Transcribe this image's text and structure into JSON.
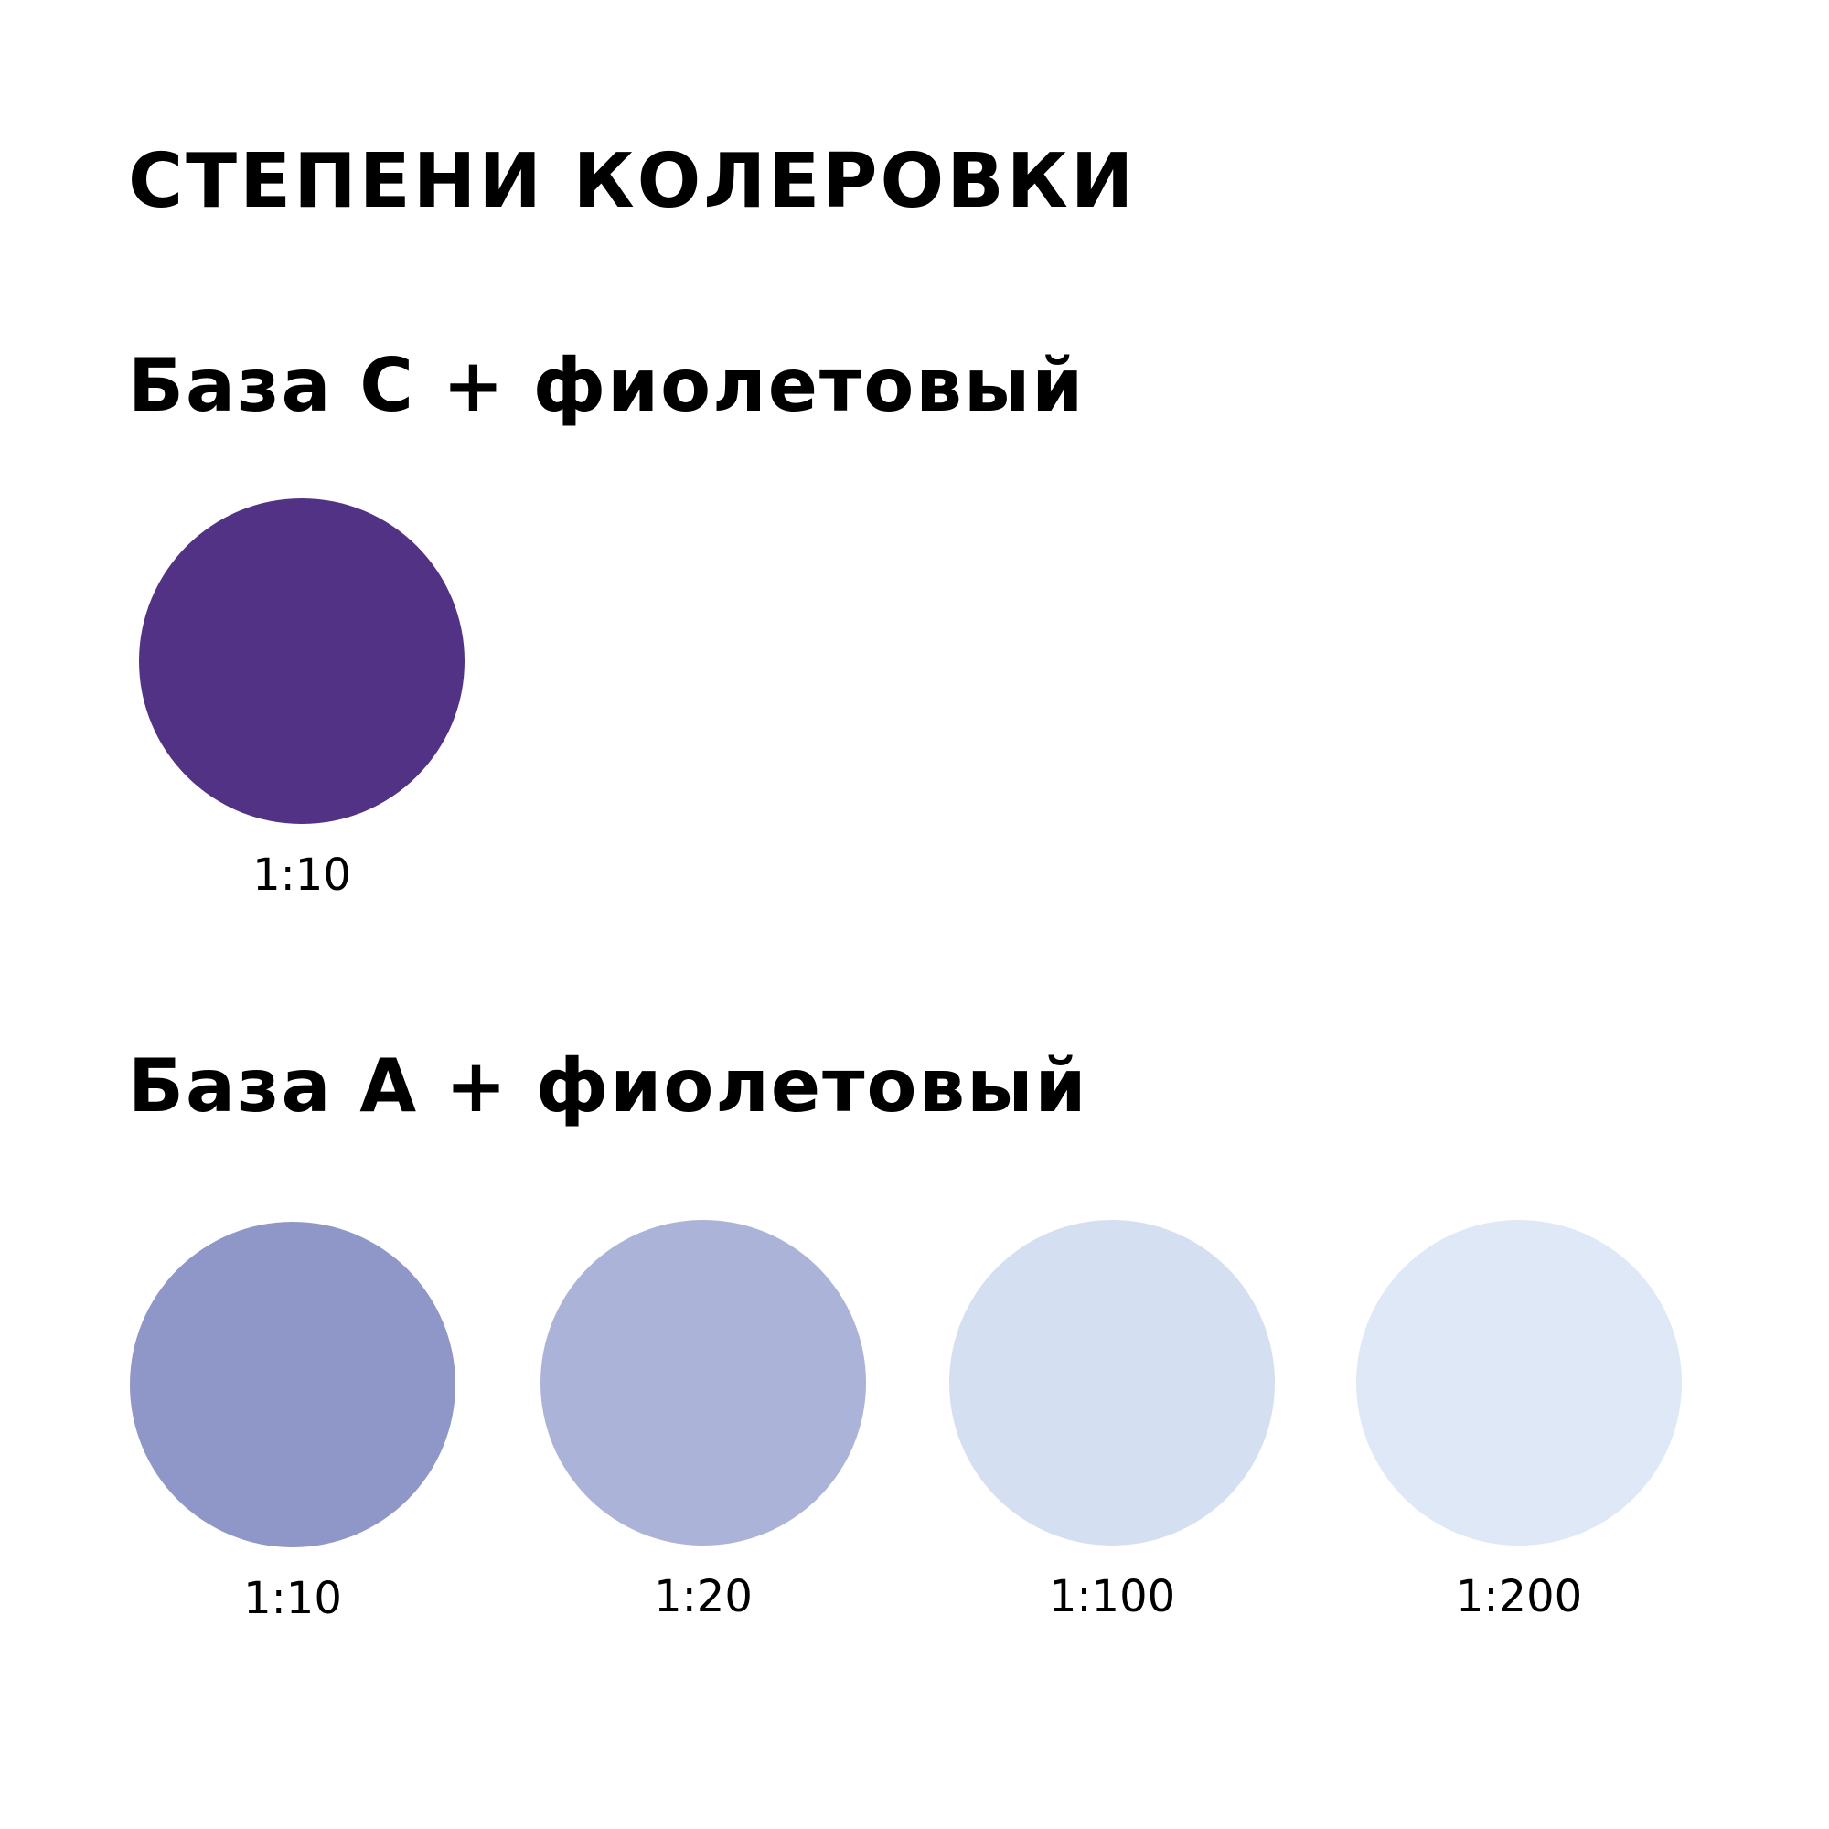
{
  "title": "СТЕПЕНИ КОЛЕРОВКИ",
  "sections": [
    {
      "title": "База С + фиолетовый",
      "swatches": [
        {
          "ratio": "1:10",
          "color": "#513285"
        }
      ]
    },
    {
      "title": "База А + фиолетовый",
      "swatches": [
        {
          "ratio": "1:10",
          "color": "#8f96c8"
        },
        {
          "ratio": "1:20",
          "color": "#abb4d8"
        },
        {
          "ratio": "1:100",
          "color": "#d4e0f2"
        },
        {
          "ratio": "1:200",
          "color": "#dee8f6"
        }
      ]
    }
  ]
}
